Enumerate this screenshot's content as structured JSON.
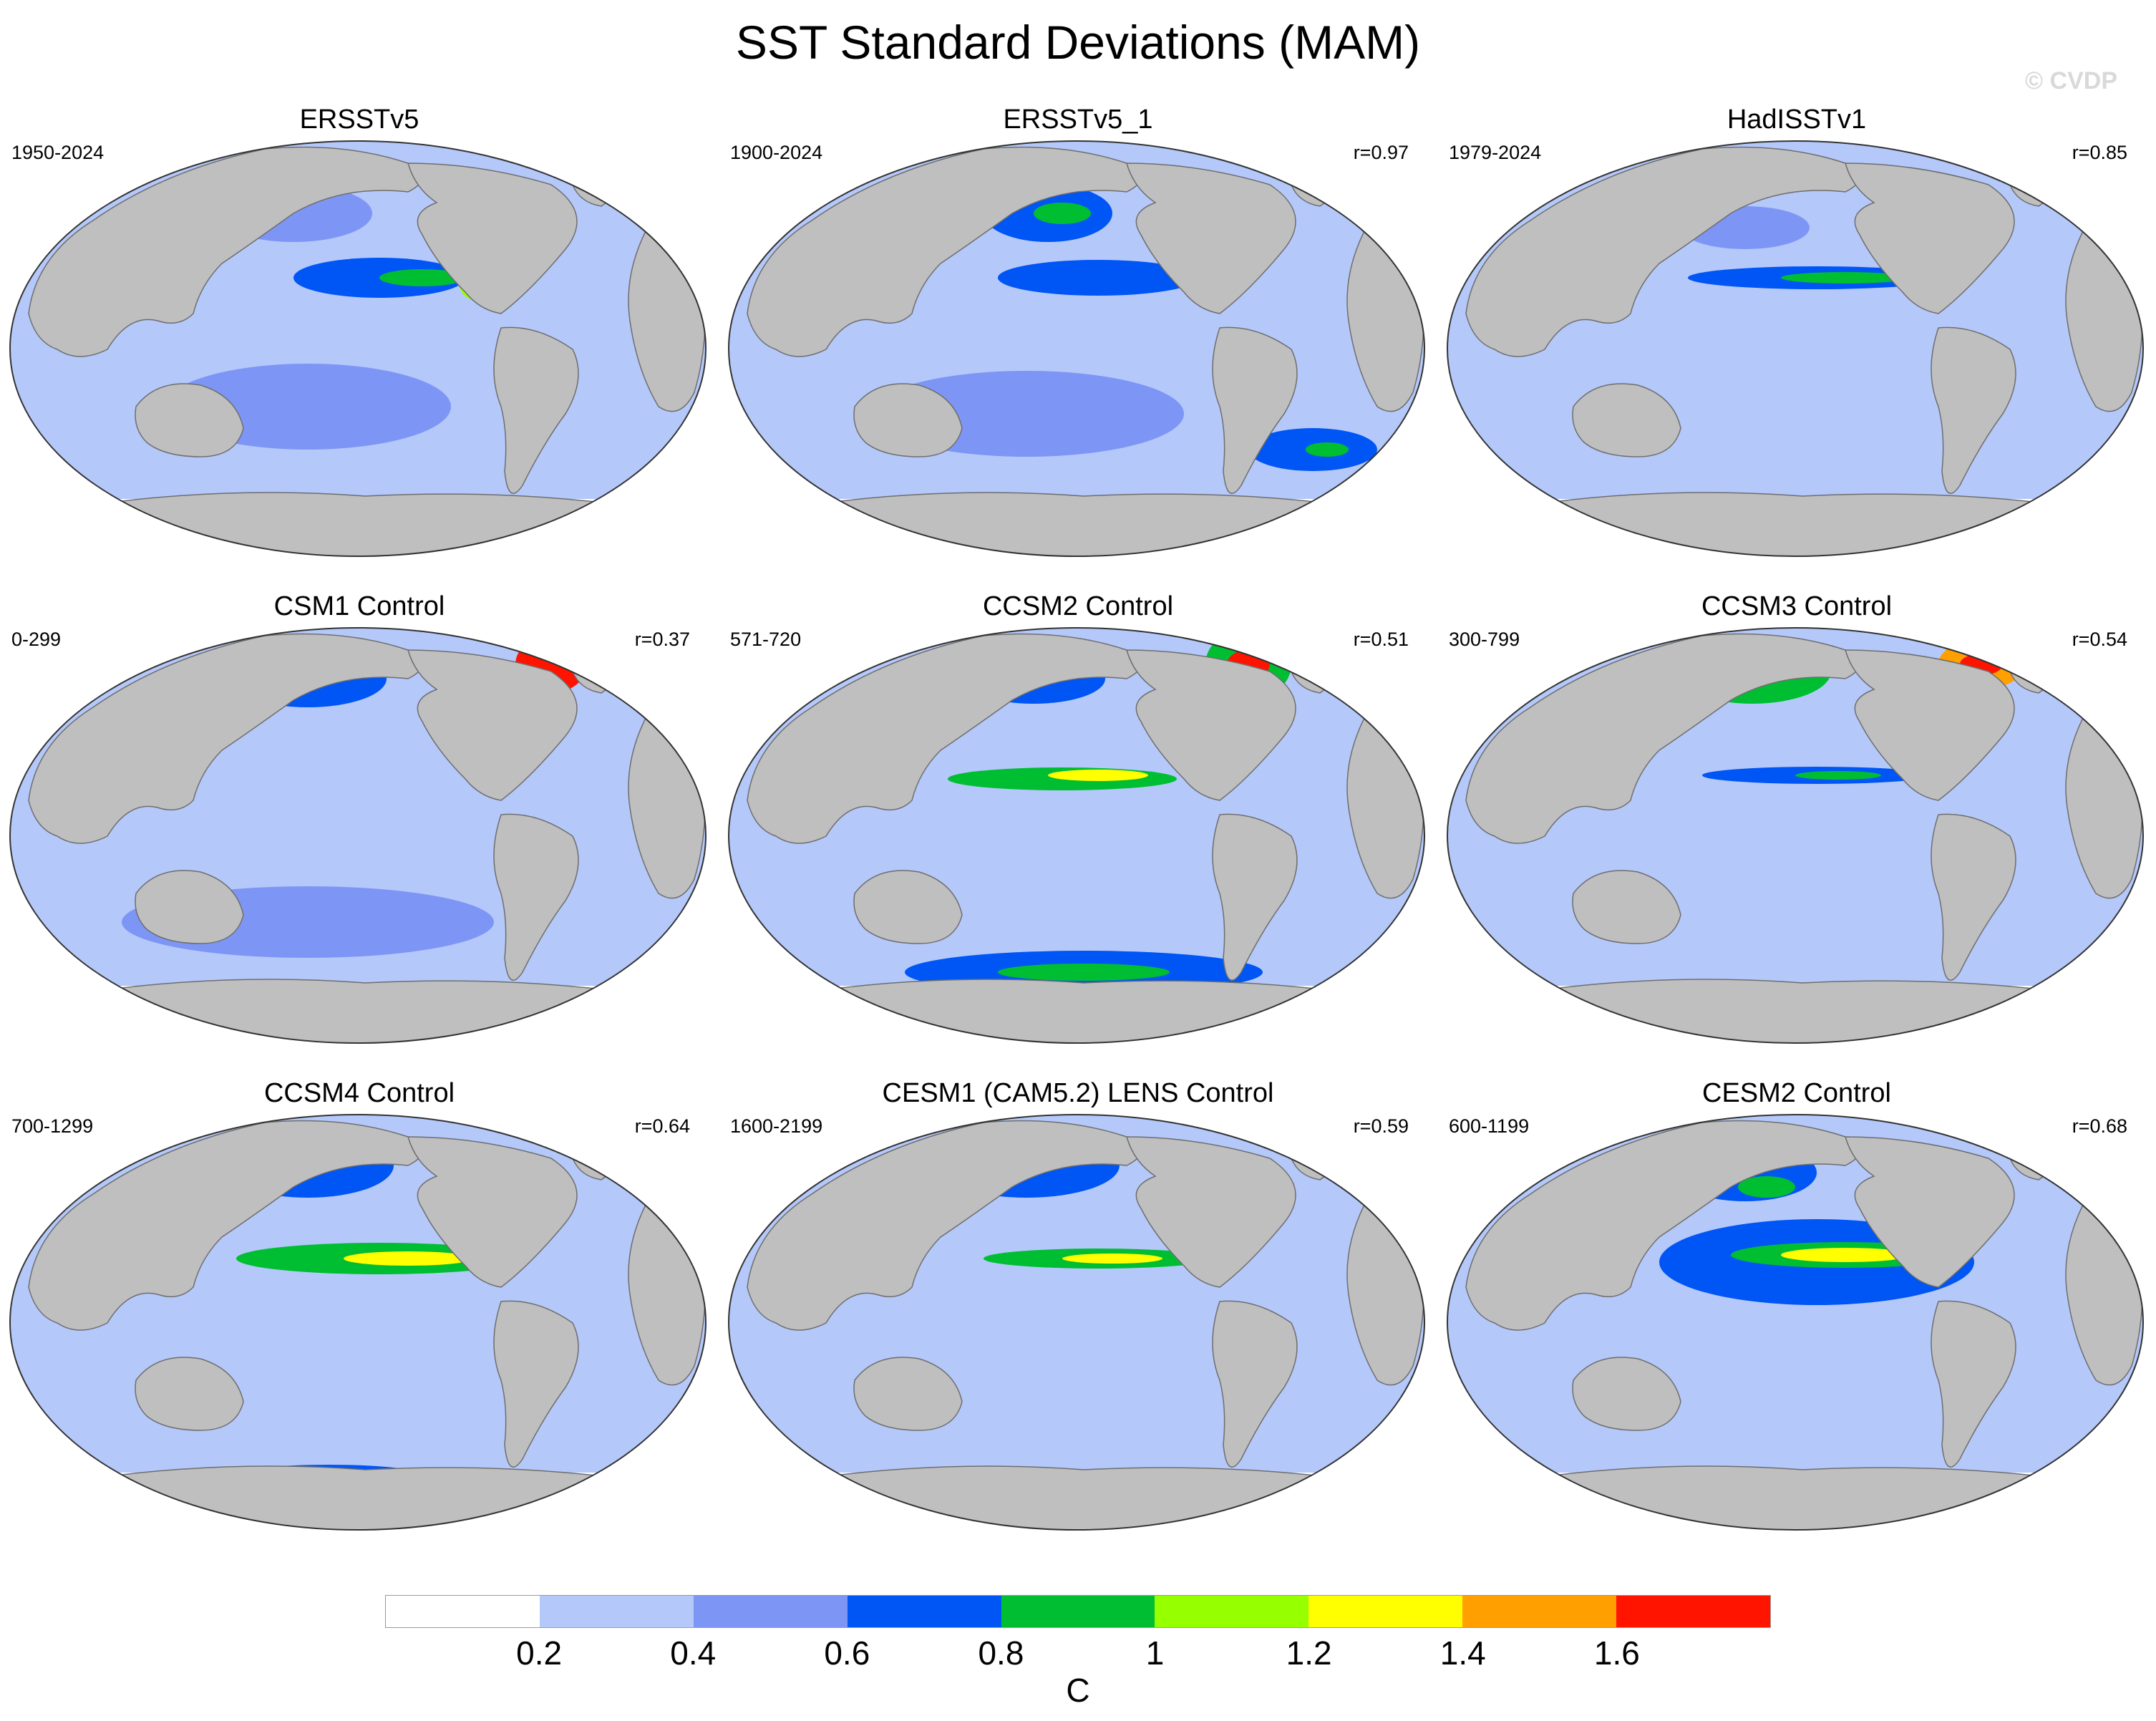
{
  "figure": {
    "title": "SST Standard Deviations (MAM)",
    "watermark": "© CVDP"
  },
  "panels": [
    {
      "title": "ERSSTv5",
      "period": "1950-2024",
      "corr": ""
    },
    {
      "title": "ERSSTv5_1",
      "period": "1900-2024",
      "corr": "r=0.97"
    },
    {
      "title": "HadISSTv1",
      "period": "1979-2024",
      "corr": "r=0.85"
    },
    {
      "title": "CSM1 Control",
      "period": "0-299",
      "corr": "r=0.37"
    },
    {
      "title": "CCSM2 Control",
      "period": "571-720",
      "corr": "r=0.51"
    },
    {
      "title": "CCSM3 Control",
      "period": "300-799",
      "corr": "r=0.54"
    },
    {
      "title": "CCSM4 Control",
      "period": "700-1299",
      "corr": "r=0.64"
    },
    {
      "title": "CESM1 (CAM5.2) LENS Control",
      "period": "1600-2199",
      "corr": "r=0.59"
    },
    {
      "title": "CESM2 Control",
      "period": "600-1199",
      "corr": "r=0.68"
    }
  ],
  "colorbar": {
    "colors": [
      "#ffffff",
      "#b4c8fa",
      "#7d96f5",
      "#0055f5",
      "#00be32",
      "#96ff00",
      "#ffff00",
      "#ffa000",
      "#ff1400"
    ],
    "labels": [
      "0.2",
      "0.4",
      "0.6",
      "0.8",
      "1",
      "1.2",
      "1.4",
      "1.6"
    ],
    "unit": "C"
  },
  "map_colors": {
    "land": "#bfbfbf",
    "coast": "#6e6e6e"
  }
}
